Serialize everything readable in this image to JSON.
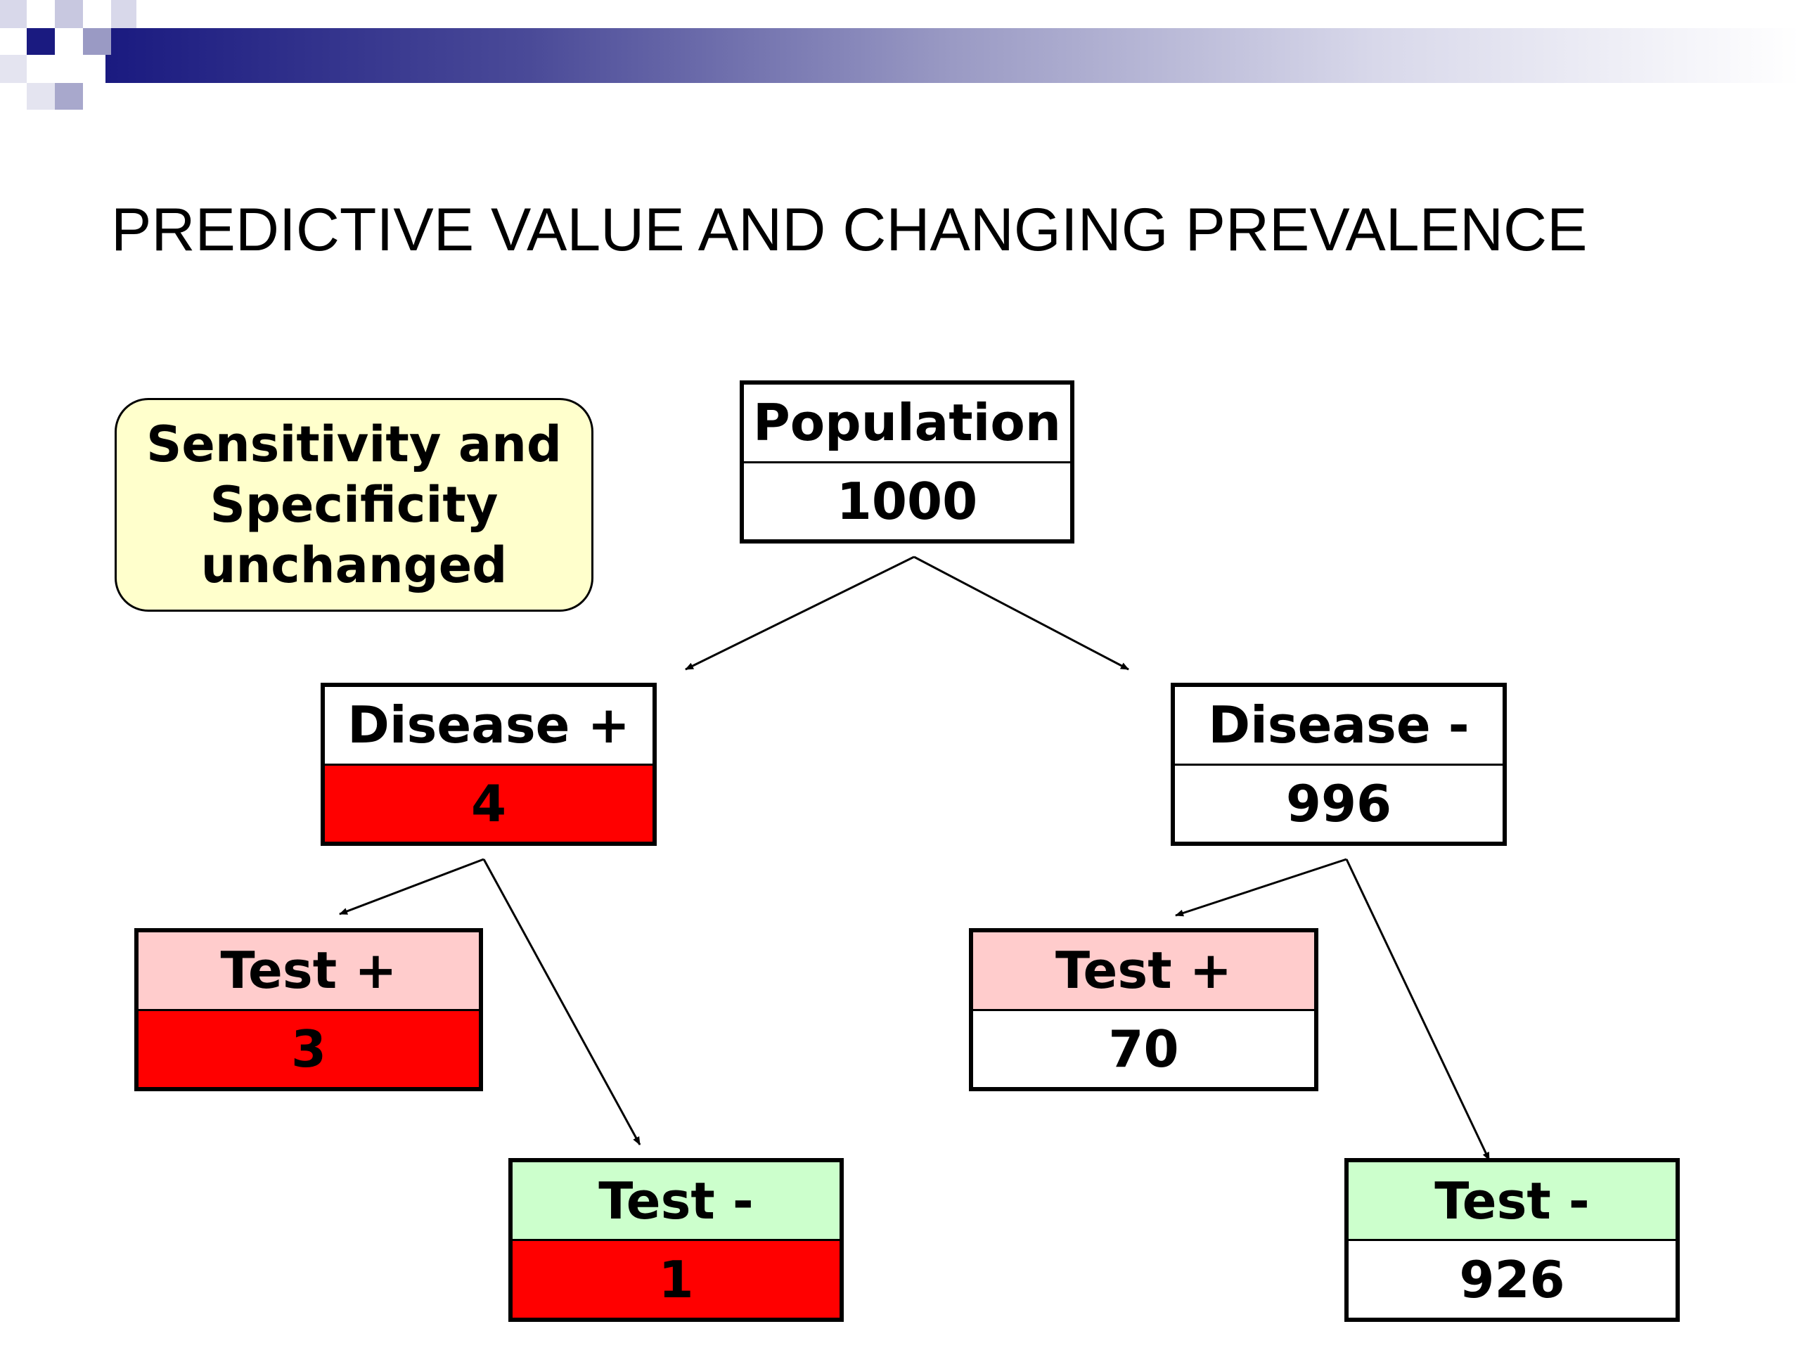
{
  "title": "PREDICTIVE VALUE AND CHANGING PREVALENCE",
  "note": {
    "lines": [
      "Sensitivity and",
      "Specificity",
      "unchanged"
    ]
  },
  "nodes": {
    "population": {
      "label": "Population",
      "value": "1000"
    },
    "disease_pos": {
      "label": "Disease +",
      "value": "4"
    },
    "disease_neg": {
      "label": "Disease -",
      "value": "996"
    },
    "pos_test_pos": {
      "label": "Test +",
      "value": "3"
    },
    "pos_test_neg": {
      "label": "Test -",
      "value": "1"
    },
    "neg_test_pos": {
      "label": "Test +",
      "value": "70"
    },
    "neg_test_neg": {
      "label": "Test -",
      "value": "926"
    }
  },
  "colors": {
    "positive_value": "#ff0000",
    "test_positive_label": "#ffcccc",
    "test_negative_label": "#ccffcc",
    "note_background": "#ffffcc",
    "header_band_dark": "#1a1a80"
  }
}
